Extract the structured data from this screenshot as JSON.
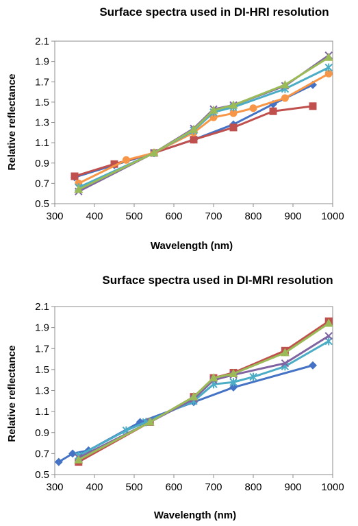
{
  "chart_data": [
    {
      "type": "line",
      "title": "Surface spectra used in DI-HRI resolution",
      "xlabel": "Wavelength (nm)",
      "ylabel": "Relative reflectance",
      "xlim": [
        300,
        1000
      ],
      "ylim": [
        0.5,
        2.1
      ],
      "xticks": [
        300,
        400,
        500,
        600,
        700,
        800,
        900,
        1000
      ],
      "yticks": [
        0.5,
        0.7,
        0.9,
        1.1,
        1.3,
        1.5,
        1.7,
        1.9,
        2.1
      ],
      "grid": false,
      "legend": "none",
      "series": [
        {
          "color": "#4472c4",
          "marker": "diamond",
          "points": [
            [
              350,
              0.76
            ],
            [
              450,
              0.88
            ],
            [
              550,
              1.0
            ],
            [
              650,
              1.13
            ],
            [
              750,
              1.28
            ],
            [
              850,
              1.48
            ],
            [
              950,
              1.67
            ]
          ]
        },
        {
          "color": "#c0504d",
          "marker": "square",
          "points": [
            [
              350,
              0.77
            ],
            [
              450,
              0.89
            ],
            [
              550,
              1.0
            ],
            [
              650,
              1.13
            ],
            [
              750,
              1.25
            ],
            [
              850,
              1.41
            ],
            [
              950,
              1.46
            ]
          ]
        },
        {
          "color": "#f79646",
          "marker": "circle",
          "points": [
            [
              360,
              0.7
            ],
            [
              480,
              0.93
            ],
            [
              550,
              1.0
            ],
            [
              650,
              1.2
            ],
            [
              700,
              1.35
            ],
            [
              750,
              1.39
            ],
            [
              800,
              1.44
            ],
            [
              880,
              1.54
            ],
            [
              990,
              1.78
            ]
          ]
        },
        {
          "color": "#4bacc6",
          "marker": "star",
          "points": [
            [
              360,
              0.66
            ],
            [
              550,
              1.0
            ],
            [
              650,
              1.22
            ],
            [
              700,
              1.4
            ],
            [
              750,
              1.45
            ],
            [
              880,
              1.63
            ],
            [
              990,
              1.84
            ]
          ]
        },
        {
          "color": "#8064a2",
          "marker": "x",
          "points": [
            [
              360,
              0.62
            ],
            [
              550,
              1.0
            ],
            [
              650,
              1.24
            ],
            [
              700,
              1.43
            ],
            [
              750,
              1.47
            ],
            [
              880,
              1.66
            ],
            [
              990,
              1.96
            ]
          ]
        },
        {
          "color": "#9bbb59",
          "marker": "triangle",
          "points": [
            [
              360,
              0.64
            ],
            [
              550,
              1.0
            ],
            [
              650,
              1.23
            ],
            [
              700,
              1.42
            ],
            [
              750,
              1.47
            ],
            [
              880,
              1.67
            ],
            [
              990,
              1.94
            ]
          ]
        }
      ]
    },
    {
      "type": "line",
      "title": "Surface spectra used in DI-MRI resolution",
      "xlabel": "Wavelength (nm)",
      "ylabel": "Relative reflectance",
      "xlim": [
        300,
        1000
      ],
      "ylim": [
        0.5,
        2.1
      ],
      "xticks": [
        300,
        400,
        500,
        600,
        700,
        800,
        900,
        1000
      ],
      "yticks": [
        0.5,
        0.7,
        0.9,
        1.1,
        1.3,
        1.5,
        1.7,
        1.9,
        2.1
      ],
      "grid": false,
      "legend": "none",
      "series": [
        {
          "color": "#4472c4",
          "marker": "diamond",
          "points": [
            [
              310,
              0.62
            ],
            [
              345,
              0.7
            ],
            [
              385,
              0.73
            ],
            [
              515,
              1.0
            ],
            [
              650,
              1.19
            ],
            [
              750,
              1.33
            ],
            [
              950,
              1.54
            ]
          ]
        },
        {
          "color": "#c0504d",
          "marker": "square",
          "points": [
            [
              360,
              0.62
            ],
            [
              540,
              1.0
            ],
            [
              650,
              1.24
            ],
            [
              700,
              1.42
            ],
            [
              750,
              1.47
            ],
            [
              880,
              1.68
            ],
            [
              990,
              1.96
            ]
          ]
        },
        {
          "color": "#4bacc6",
          "marker": "star",
          "points": [
            [
              360,
              0.68
            ],
            [
              480,
              0.92
            ],
            [
              530,
              1.0
            ],
            [
              650,
              1.2
            ],
            [
              700,
              1.36
            ],
            [
              750,
              1.38
            ],
            [
              800,
              1.43
            ],
            [
              880,
              1.53
            ],
            [
              990,
              1.77
            ]
          ]
        },
        {
          "color": "#8064a2",
          "marker": "x",
          "points": [
            [
              360,
              0.66
            ],
            [
              540,
              1.0
            ],
            [
              650,
              1.22
            ],
            [
              700,
              1.4
            ],
            [
              750,
              1.45
            ],
            [
              880,
              1.56
            ],
            [
              990,
              1.82
            ]
          ]
        },
        {
          "color": "#9bbb59",
          "marker": "triangle",
          "points": [
            [
              360,
              0.64
            ],
            [
              540,
              1.0
            ],
            [
              650,
              1.24
            ],
            [
              700,
              1.42
            ],
            [
              750,
              1.46
            ],
            [
              880,
              1.66
            ],
            [
              990,
              1.94
            ]
          ]
        }
      ]
    }
  ]
}
